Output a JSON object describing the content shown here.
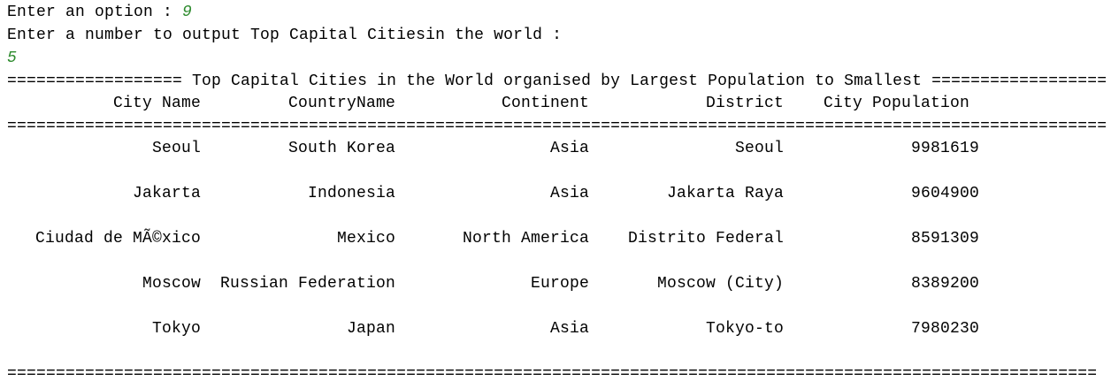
{
  "console": {
    "option_prompt": "Enter an option : ",
    "option_input": "9",
    "number_prompt": "Enter a number to output Top Capital Citiesin the world :",
    "number_input": "5",
    "title_line": "================== Top Capital Cities in the World organised by Largest Population to Smallest ==================",
    "headers": [
      "City Name",
      "CountryName",
      "Continent",
      "District",
      "City Population"
    ],
    "header_rule": "=================================================================================================================",
    "rows": [
      [
        "Seoul",
        "South Korea",
        "Asia",
        "Seoul",
        9981619
      ],
      [
        "Jakarta",
        "Indonesia",
        "Asia",
        "Jakarta Raya",
        9604900
      ],
      [
        "Ciudad de MÃ©xico",
        "Mexico",
        "North America",
        "Distrito Federal",
        8591309
      ],
      [
        "Moscow",
        "Russian Federation",
        "Europe",
        "Moscow (City)",
        8389200
      ],
      [
        "Tokyo",
        "Japan",
        "Asia",
        "Tokyo-to",
        7980230
      ]
    ],
    "footer_rule": "================================================================================================================"
  }
}
